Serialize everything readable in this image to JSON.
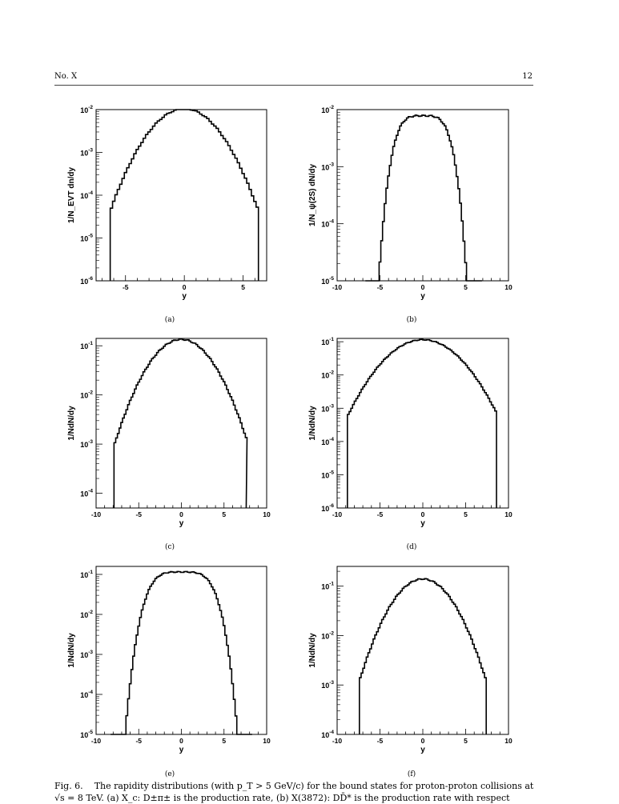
{
  "header": {
    "left": "No. X",
    "right": "12"
  },
  "caption": {
    "label": "Fig. 6.",
    "text": "The rapidity distributions (with p_T > 5 GeV/c) for the bound states for proton-proton collisions at √s = 8 TeV. (a) X_c: D±π± is the production rate, (b) X(3872): DD̄* is the production rate with respect"
  },
  "chart_data": [
    {
      "type": "histogram",
      "panel": "(a)",
      "ylabel": "1/N_EVT dn/dy",
      "xlabel": "y",
      "xlim": [
        -7.5,
        7.0
      ],
      "xticks": [
        -5,
        0,
        5
      ],
      "ylim_log10": [
        -6,
        -2
      ],
      "yticks": [
        "10^-2",
        "10^-3",
        "10^-4",
        "10^-5",
        "10^-6"
      ],
      "peak": 0.0105,
      "ymin_range": [
        -6.3,
        6.3
      ],
      "shape": "gaussian",
      "sigma": 1.9
    },
    {
      "type": "histogram",
      "panel": "(b)",
      "ylabel": "1/N_ψ(2S) dN/dy",
      "xlabel": "y",
      "xlim": [
        -10,
        10
      ],
      "xticks": [
        -10,
        -5,
        0,
        5,
        10
      ],
      "ylim_log10": [
        -5,
        -2
      ],
      "yticks": [
        "10^-2",
        "10^-3",
        "10^-4",
        "10^-5"
      ],
      "peak": 0.0078,
      "ymin_range": [
        -6.7,
        6.8
      ],
      "shape": "flat",
      "sigma": 3.4
    },
    {
      "type": "histogram",
      "panel": "(c)",
      "ylabel": "1/NdN/dy",
      "xlabel": "y",
      "xlim": [
        -10,
        10
      ],
      "xticks": [
        -10,
        -5,
        0,
        5,
        10
      ],
      "ylim_log10": [
        -4.3,
        -0.85
      ],
      "yticks": [
        "10^-1",
        "10^-2",
        "10^-3",
        "10^-4"
      ],
      "peak": 0.135,
      "ymin_range": [
        -7.9,
        7.6
      ],
      "shape": "gaussian",
      "sigma": 2.5
    },
    {
      "type": "histogram",
      "panel": "(d)",
      "ylabel": "1/NdN/dy",
      "xlabel": "y",
      "xlim": [
        -10,
        10
      ],
      "xticks": [
        -10,
        -5,
        0,
        5,
        10
      ],
      "ylim_log10": [
        -6,
        -0.9
      ],
      "yticks": [
        "10^-1",
        "10^-2",
        "10^-3",
        "10^-4",
        "10^-5",
        "10^-6"
      ],
      "peak": 0.115,
      "ymin_range": [
        -8.8,
        8.6
      ],
      "shape": "gaussian",
      "sigma": 2.7
    },
    {
      "type": "histogram",
      "panel": "(e)",
      "ylabel": "1/NdN/dy",
      "xlabel": "y",
      "xlim": [
        -10,
        10
      ],
      "xticks": [
        -10,
        -5,
        0,
        5,
        10
      ],
      "ylim_log10": [
        -5,
        -0.8
      ],
      "yticks": [
        "10^-1",
        "10^-2",
        "10^-3",
        "10^-4",
        "10^-5"
      ],
      "peak": 0.115,
      "ymin_range": [
        -8.3,
        8.2
      ],
      "shape": "flat",
      "sigma": 4.0
    },
    {
      "type": "histogram",
      "panel": "(f)",
      "ylabel": "1/NdN/dy",
      "xlabel": "y",
      "xlim": [
        -10,
        10
      ],
      "xticks": [
        -10,
        -5,
        0,
        5,
        10
      ],
      "ylim_log10": [
        -4,
        -0.6
      ],
      "yticks": [
        "10^-1",
        "10^-2",
        "10^-3",
        "10^-4"
      ],
      "peak": 0.14,
      "ymin_range": [
        -7.4,
        7.4
      ],
      "shape": "gaussian",
      "sigma": 2.4
    }
  ]
}
